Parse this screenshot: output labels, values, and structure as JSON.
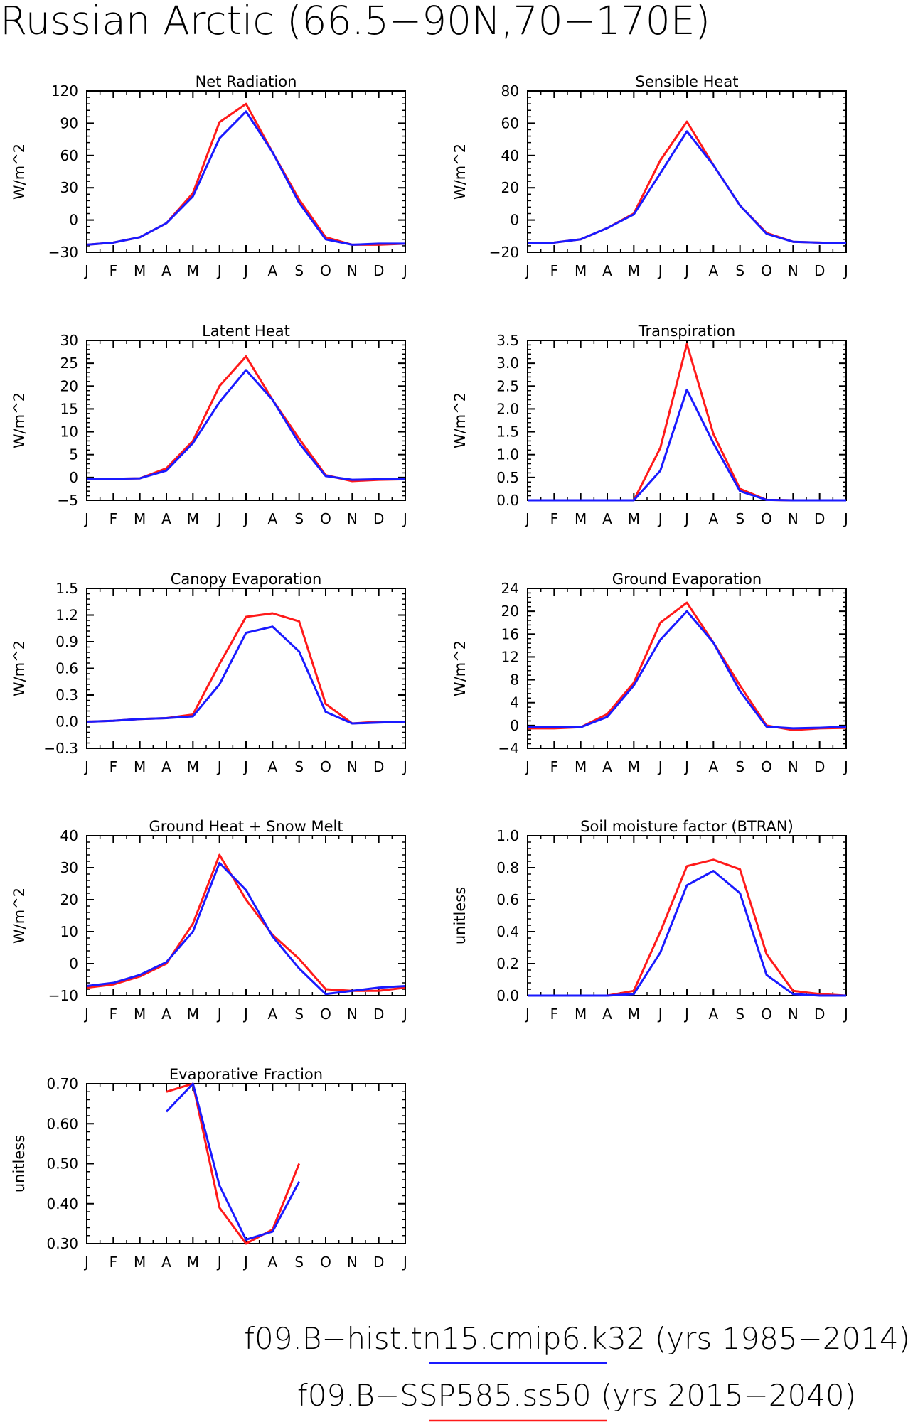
{
  "figure_title": "Russian Arctic (66.5−90N,70−170E)",
  "legend": [
    {
      "label": "f09.B−hist.tn15.cmip6.k32 (yrs 1985−2014)",
      "color": "#1a1aff"
    },
    {
      "label": "f09.B−SSP585.ss50 (yrs 2015−2040)",
      "color": "#ff1a1a"
    }
  ],
  "colors": {
    "hist": "#1a1aff",
    "ssp": "#ff1a1a",
    "axis": "#000000"
  },
  "chart_data": [
    {
      "type": "line",
      "title": "Net Radiation",
      "ylabel": "W/m^2",
      "categories": [
        "J",
        "F",
        "M",
        "A",
        "M",
        "J",
        "J",
        "A",
        "S",
        "O",
        "N",
        "D",
        "J"
      ],
      "ylim": [
        -30,
        120
      ],
      "yticks": [
        "-30",
        "0",
        "30",
        "60",
        "90",
        "120"
      ],
      "series": [
        {
          "color": "#ff1a1a",
          "values": [
            -23,
            -21,
            -16,
            -3,
            25,
            91,
            108,
            63,
            19,
            -16,
            -23,
            -23,
            -22
          ]
        },
        {
          "color": "#1a1aff",
          "values": [
            -23,
            -21,
            -16,
            -3,
            22,
            76,
            101,
            63,
            16,
            -18,
            -23,
            -22,
            -22
          ]
        }
      ]
    },
    {
      "type": "line",
      "title": "Sensible Heat",
      "ylabel": "W/m^2",
      "categories": [
        "J",
        "F",
        "M",
        "A",
        "M",
        "J",
        "J",
        "A",
        "S",
        "O",
        "N",
        "D",
        "J"
      ],
      "ylim": [
        -20,
        80
      ],
      "yticks": [
        "-20",
        "0",
        "20",
        "40",
        "60",
        "80"
      ],
      "series": [
        {
          "color": "#ff1a1a",
          "values": [
            -14.5,
            -14,
            -12,
            -5,
            4,
            37,
            61,
            34,
            9,
            -8,
            -13.5,
            -14,
            -14.5
          ]
        },
        {
          "color": "#1a1aff",
          "values": [
            -14.5,
            -14,
            -12,
            -5,
            3.5,
            29,
            55,
            34,
            9,
            -8.5,
            -13.5,
            -14,
            -14.5
          ]
        }
      ]
    },
    {
      "type": "line",
      "title": "Latent Heat",
      "ylabel": "W/m^2",
      "categories": [
        "J",
        "F",
        "M",
        "A",
        "M",
        "J",
        "J",
        "A",
        "S",
        "O",
        "N",
        "D",
        "J"
      ],
      "ylim": [
        -5,
        30
      ],
      "yticks": [
        "-5",
        "0",
        "5",
        "10",
        "15",
        "20",
        "25",
        "30"
      ],
      "series": [
        {
          "color": "#ff1a1a",
          "values": [
            -0.3,
            -0.3,
            -0.2,
            2,
            8,
            20,
            26.5,
            17,
            8.5,
            0.5,
            -0.8,
            -0.5,
            -0.4
          ]
        },
        {
          "color": "#1a1aff",
          "values": [
            -0.3,
            -0.3,
            -0.2,
            1.5,
            7.5,
            16.5,
            23.5,
            17,
            7.5,
            0.3,
            -0.5,
            -0.4,
            -0.3
          ]
        }
      ]
    },
    {
      "type": "line",
      "title": "Transpiration",
      "ylabel": "W/m^2",
      "categories": [
        "J",
        "F",
        "M",
        "A",
        "M",
        "J",
        "J",
        "A",
        "S",
        "O",
        "N",
        "D",
        "J"
      ],
      "ylim": [
        0,
        3.5
      ],
      "yticks": [
        "0.0",
        "0.5",
        "1.0",
        "1.5",
        "2.0",
        "2.5",
        "3.0",
        "3.5"
      ],
      "series": [
        {
          "color": "#ff1a1a",
          "values": [
            0,
            0,
            0,
            0,
            0,
            1.15,
            3.42,
            1.45,
            0.25,
            0.01,
            0,
            0,
            0
          ]
        },
        {
          "color": "#1a1aff",
          "values": [
            0,
            0,
            0,
            0,
            0,
            0.65,
            2.42,
            1.25,
            0.2,
            0.01,
            0,
            0,
            0
          ]
        }
      ]
    },
    {
      "type": "line",
      "title": "Canopy Evaporation",
      "ylabel": "W/m^2",
      "categories": [
        "J",
        "F",
        "M",
        "A",
        "M",
        "J",
        "J",
        "A",
        "S",
        "O",
        "N",
        "D",
        "J"
      ],
      "ylim": [
        -0.3,
        1.5
      ],
      "yticks": [
        "-0.3",
        "0.0",
        "0.3",
        "0.6",
        "0.9",
        "1.2",
        "1.5"
      ],
      "series": [
        {
          "color": "#ff1a1a",
          "values": [
            0,
            0.01,
            0.03,
            0.04,
            0.08,
            0.65,
            1.18,
            1.22,
            1.13,
            0.2,
            -0.02,
            0,
            0
          ]
        },
        {
          "color": "#1a1aff",
          "values": [
            0,
            0.01,
            0.03,
            0.04,
            0.06,
            0.42,
            1.0,
            1.07,
            0.79,
            0.11,
            -0.02,
            -0.01,
            0
          ]
        }
      ]
    },
    {
      "type": "line",
      "title": "Ground Evaporation",
      "ylabel": "W/m^2",
      "categories": [
        "J",
        "F",
        "M",
        "A",
        "M",
        "J",
        "J",
        "A",
        "S",
        "O",
        "N",
        "D",
        "J"
      ],
      "ylim": [
        -4,
        24
      ],
      "yticks": [
        "-4",
        "0",
        "4",
        "8",
        "12",
        "16",
        "20",
        "24"
      ],
      "series": [
        {
          "color": "#ff1a1a",
          "values": [
            -0.5,
            -0.5,
            -0.3,
            2,
            7.5,
            18,
            21.5,
            14.5,
            7,
            0,
            -0.8,
            -0.5,
            -0.4
          ]
        },
        {
          "color": "#1a1aff",
          "values": [
            -0.3,
            -0.3,
            -0.3,
            1.5,
            7,
            15,
            20,
            14.5,
            6,
            -0.2,
            -0.5,
            -0.4,
            -0.2
          ]
        }
      ]
    },
    {
      "type": "line",
      "title": "Ground Heat + Snow Melt",
      "ylabel": "W/m^2",
      "categories": [
        "J",
        "F",
        "M",
        "A",
        "M",
        "J",
        "J",
        "A",
        "S",
        "O",
        "N",
        "D",
        "J"
      ],
      "ylim": [
        -10,
        40
      ],
      "yticks": [
        "-10",
        "0",
        "10",
        "20",
        "30",
        "40"
      ],
      "series": [
        {
          "color": "#ff1a1a",
          "values": [
            -7.5,
            -6.5,
            -4,
            0,
            12.5,
            34,
            20,
            9,
            1.5,
            -8,
            -8.5,
            -8.5,
            -7.5
          ]
        },
        {
          "color": "#1a1aff",
          "values": [
            -7,
            -6,
            -3.5,
            0.5,
            10,
            31.5,
            23,
            8.5,
            -1.5,
            -9.5,
            -8.5,
            -7.5,
            -7
          ]
        }
      ]
    },
    {
      "type": "line",
      "title": "Soil moisture factor (BTRAN)",
      "ylabel": "unitless",
      "categories": [
        "J",
        "F",
        "M",
        "A",
        "M",
        "J",
        "J",
        "A",
        "S",
        "O",
        "N",
        "D",
        "J"
      ],
      "ylim": [
        0,
        1.0
      ],
      "yticks": [
        "0.0",
        "0.2",
        "0.4",
        "0.6",
        "0.8",
        "1.0"
      ],
      "series": [
        {
          "color": "#ff1a1a",
          "values": [
            0,
            0,
            0,
            0,
            0.03,
            0.4,
            0.81,
            0.85,
            0.79,
            0.26,
            0.03,
            0.01,
            0
          ]
        },
        {
          "color": "#1a1aff",
          "values": [
            0,
            0,
            0,
            0,
            0.01,
            0.27,
            0.69,
            0.78,
            0.64,
            0.13,
            0.01,
            0,
            0
          ]
        }
      ]
    },
    {
      "type": "line",
      "title": "Evaporative Fraction",
      "ylabel": "unitless",
      "categories": [
        "J",
        "F",
        "M",
        "A",
        "M",
        "J",
        "J",
        "A",
        "S",
        "O",
        "N",
        "D",
        "J"
      ],
      "ylim": [
        0.3,
        0.7
      ],
      "yticks": [
        "0.30",
        "0.40",
        "0.50",
        "0.60",
        "0.70"
      ],
      "series": [
        {
          "color": "#ff1a1a",
          "values": [
            null,
            null,
            null,
            0.68,
            0.7,
            0.39,
            0.3,
            0.335,
            0.5,
            null,
            null,
            null,
            null
          ]
        },
        {
          "color": "#1a1aff",
          "values": [
            null,
            null,
            null,
            0.63,
            0.7,
            0.445,
            0.31,
            0.33,
            0.455,
            null,
            null,
            null,
            null
          ]
        }
      ]
    }
  ]
}
